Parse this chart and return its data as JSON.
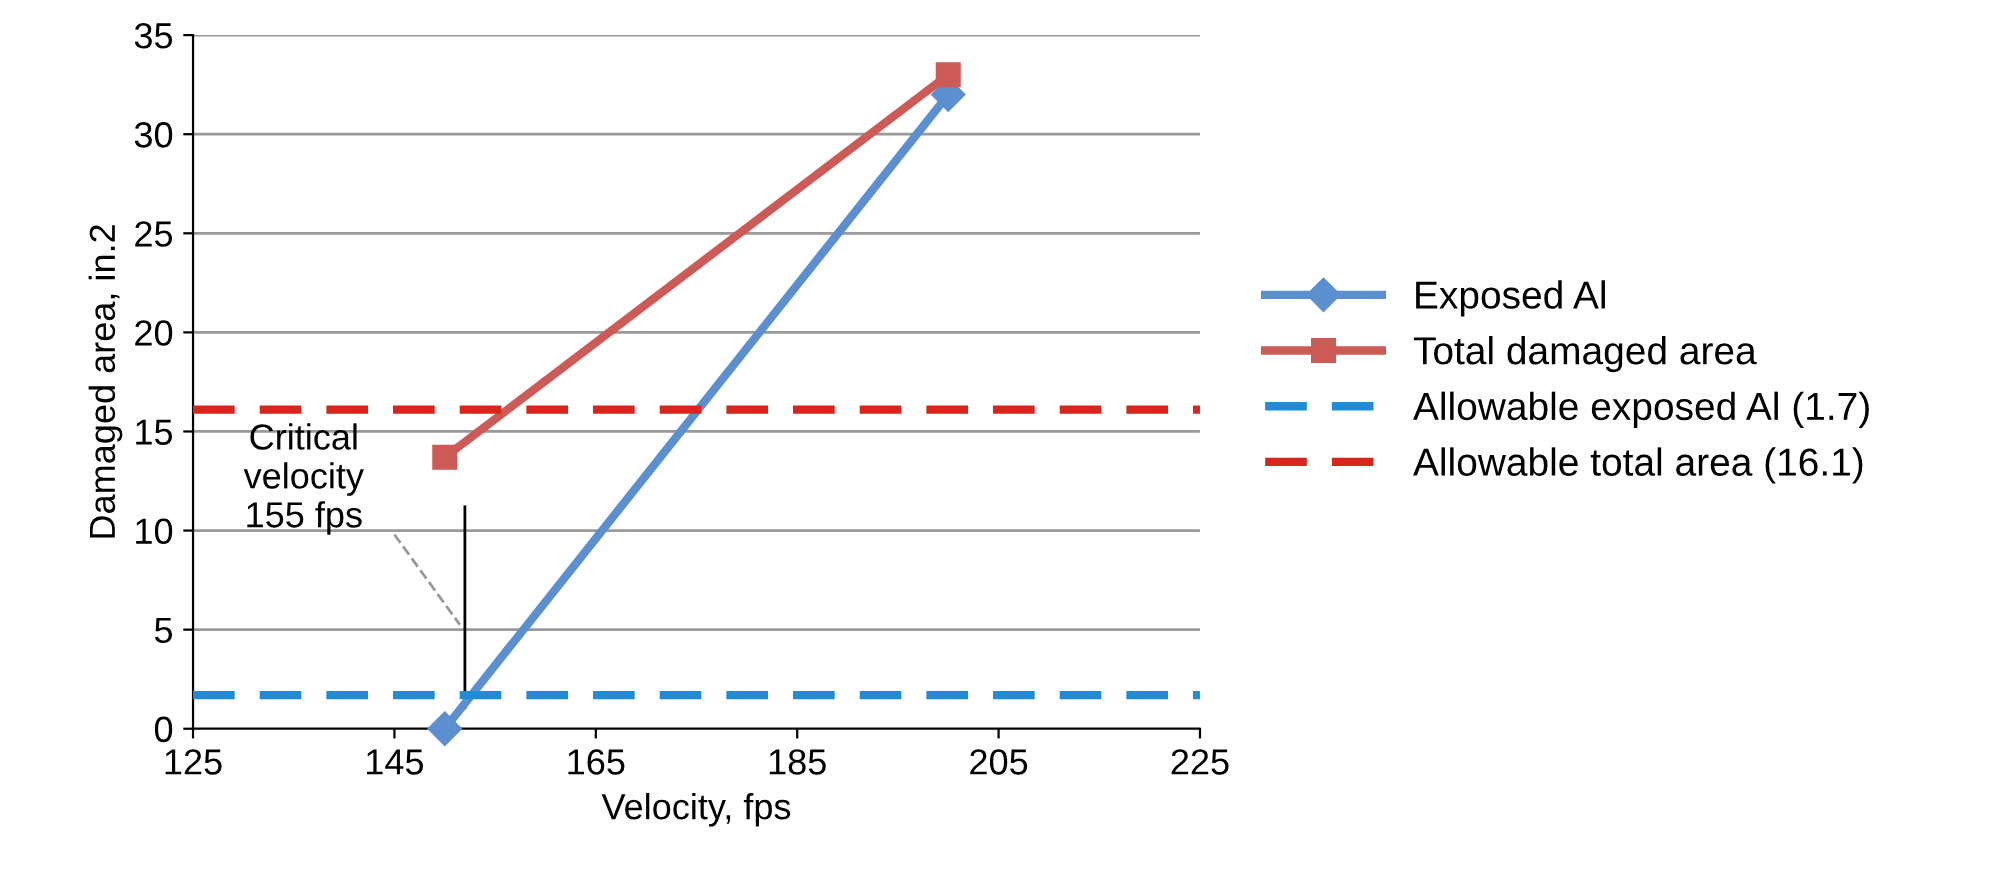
{
  "chart_data": {
    "type": "line",
    "xlabel": "Velocity, fps",
    "ylabel": "Damaged area, in.2",
    "xlim": [
      125,
      225
    ],
    "xticks": [
      125,
      145,
      165,
      185,
      205,
      225
    ],
    "ylim": [
      0,
      35
    ],
    "yticks": [
      0,
      5,
      10,
      15,
      20,
      25,
      30,
      35
    ],
    "grid": "y",
    "legend": "right",
    "series": [
      {
        "name": "Exposed Al",
        "color": "#5b8fd0",
        "x": [
          150,
          200
        ],
        "values": [
          0,
          32
        ],
        "marker": "diamond",
        "line_style": "solid"
      },
      {
        "name": "Total damaged area",
        "color": "#cc5a57",
        "x": [
          150,
          200
        ],
        "values": [
          13.7,
          33
        ],
        "marker": "square",
        "line_style": "solid"
      },
      {
        "name": "Allowable exposed Al (1.7)",
        "color": "#1f8dd6",
        "x": [
          125,
          225
        ],
        "values": [
          1.7,
          1.7
        ],
        "marker": "none",
        "line_style": "dashed"
      },
      {
        "name": "Allowable total area (16.1)",
        "color": "#d8261c",
        "x": [
          125,
          225
        ],
        "values": [
          16.1,
          16.1
        ],
        "marker": "none",
        "line_style": "dashed"
      }
    ],
    "annotations": [
      "Critical\nvelocity\n155 fps"
    ]
  }
}
